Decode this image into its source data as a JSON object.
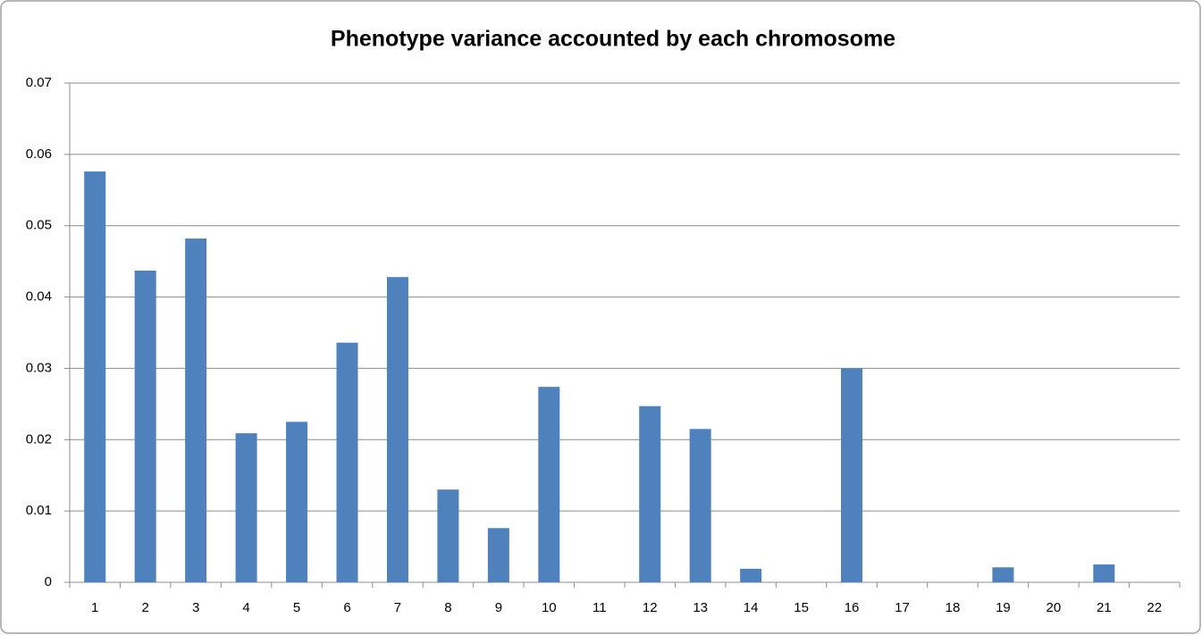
{
  "chart_data": {
    "type": "bar",
    "title": "Phenotype variance accounted by each chromosome",
    "categories": [
      "1",
      "2",
      "3",
      "4",
      "5",
      "6",
      "7",
      "8",
      "9",
      "10",
      "11",
      "12",
      "13",
      "14",
      "15",
      "16",
      "17",
      "18",
      "19",
      "20",
      "21",
      "22"
    ],
    "values": [
      0.0576,
      0.0437,
      0.0482,
      0.0209,
      0.0225,
      0.0336,
      0.0428,
      0.013,
      0.0076,
      0.0274,
      0,
      0.0247,
      0.0215,
      0.0019,
      0,
      0.03,
      0,
      0,
      0.0021,
      0,
      0.0025,
      0
    ],
    "color": "#4f81bd",
    "ylim": [
      0,
      0.07
    ],
    "yticks": [
      0,
      0.01,
      0.02,
      0.03,
      0.04,
      0.05,
      0.06,
      0.07
    ],
    "grid": true
  }
}
